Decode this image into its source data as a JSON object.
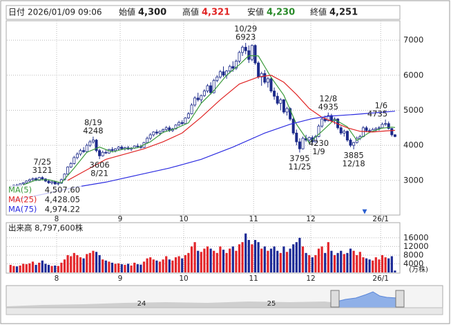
{
  "header": {
    "date_label": "日付",
    "datetime": "2026/01/09 09:06",
    "items": [
      {
        "label": "始値",
        "value": "4,300"
      },
      {
        "label": "高値",
        "value": "4,321"
      },
      {
        "label": "安値",
        "value": "4,230"
      },
      {
        "label": "終値",
        "value": "4,251"
      }
    ]
  },
  "navigator": {
    "labels": [
      "24",
      "25"
    ]
  },
  "chart_data": {
    "type": "candlestick",
    "categories": [
      null,
      null,
      null,
      null,
      null,
      null,
      null,
      null,
      null,
      null,
      null,
      null,
      null,
      null,
      null,
      "8",
      null,
      null,
      null,
      null,
      null,
      null,
      null,
      null,
      null,
      null,
      null,
      null,
      null,
      null,
      null,
      null,
      null,
      null,
      null,
      "9",
      null,
      null,
      null,
      null,
      null,
      null,
      null,
      null,
      null,
      null,
      null,
      null,
      null,
      null,
      null,
      null,
      null,
      null,
      null,
      "10",
      null,
      null,
      null,
      null,
      null,
      null,
      null,
      null,
      null,
      null,
      null,
      null,
      null,
      null,
      null,
      null,
      null,
      null,
      null,
      null,
      null,
      "11",
      null,
      null,
      null,
      null,
      null,
      null,
      null,
      null,
      null,
      null,
      null,
      null,
      null,
      null,
      null,
      null,
      null,
      "12",
      null,
      null,
      null,
      null,
      null,
      null,
      null,
      null,
      null,
      null,
      null,
      null,
      null,
      null,
      null,
      null,
      null,
      null,
      null,
      null,
      null,
      "26/1",
      null,
      null,
      null,
      null
    ],
    "ohlc": [
      [
        2780,
        2850,
        2760,
        2830
      ],
      [
        2830,
        2880,
        2800,
        2860
      ],
      [
        2860,
        2900,
        2820,
        2840
      ],
      [
        2840,
        2920,
        2830,
        2900
      ],
      [
        2900,
        2950,
        2870,
        2930
      ],
      [
        2930,
        3000,
        2900,
        2980
      ],
      [
        2980,
        3050,
        2950,
        3020
      ],
      [
        3020,
        3080,
        2990,
        3050
      ],
      [
        3050,
        3090,
        2980,
        3000
      ],
      [
        3000,
        3100,
        2990,
        3080
      ],
      [
        3080,
        3121,
        3020,
        3040
      ],
      [
        3040,
        3060,
        2950,
        2980
      ],
      [
        2980,
        3010,
        2900,
        2930
      ],
      [
        2930,
        2990,
        2880,
        2960
      ],
      [
        2960,
        2980,
        2870,
        2900
      ],
      [
        2900,
        2950,
        2850,
        2920
      ],
      [
        2920,
        3050,
        2900,
        3020
      ],
      [
        3020,
        3200,
        3000,
        3180
      ],
      [
        3180,
        3400,
        3150,
        3380
      ],
      [
        3380,
        3520,
        3350,
        3480
      ],
      [
        3480,
        3700,
        3450,
        3650
      ],
      [
        3650,
        3800,
        3600,
        3750
      ],
      [
        3750,
        3900,
        3700,
        3850
      ],
      [
        3850,
        3950,
        3780,
        3820
      ],
      [
        3820,
        4050,
        3800,
        4000
      ],
      [
        4000,
        4150,
        3950,
        4100
      ],
      [
        4100,
        4248,
        4050,
        4150
      ],
      [
        4150,
        4180,
        3800,
        3850
      ],
      [
        3850,
        3900,
        3606,
        3700
      ],
      [
        3700,
        3850,
        3680,
        3800
      ],
      [
        3800,
        3880,
        3750,
        3780
      ],
      [
        3780,
        3900,
        3760,
        3880
      ],
      [
        3880,
        3950,
        3820,
        3850
      ],
      [
        3850,
        3920,
        3800,
        3900
      ],
      [
        3900,
        3980,
        3860,
        3950
      ],
      [
        3950,
        4000,
        3880,
        3900
      ],
      [
        3900,
        3960,
        3850,
        3930
      ],
      [
        3930,
        3980,
        3870,
        3890
      ],
      [
        3890,
        3950,
        3840,
        3920
      ],
      [
        3920,
        4000,
        3900,
        3980
      ],
      [
        3980,
        4050,
        3940,
        3960
      ],
      [
        3960,
        4020,
        3900,
        3940
      ],
      [
        3940,
        4100,
        3930,
        4080
      ],
      [
        4080,
        4250,
        4060,
        4200
      ],
      [
        4200,
        4350,
        4150,
        4300
      ],
      [
        4300,
        4400,
        4250,
        4380
      ],
      [
        4380,
        4450,
        4300,
        4350
      ],
      [
        4350,
        4420,
        4280,
        4400
      ],
      [
        4400,
        4480,
        4350,
        4450
      ],
      [
        4450,
        4550,
        4400,
        4500
      ],
      [
        4500,
        4560,
        4380,
        4420
      ],
      [
        4420,
        4500,
        4380,
        4470
      ],
      [
        4470,
        4600,
        4450,
        4580
      ],
      [
        4580,
        4700,
        4550,
        4650
      ],
      [
        4650,
        4720,
        4580,
        4620
      ],
      [
        4620,
        4800,
        4600,
        4780
      ],
      [
        4780,
        4950,
        4750,
        4900
      ],
      [
        4900,
        5200,
        4880,
        5150
      ],
      [
        5150,
        5400,
        5100,
        5350
      ],
      [
        5350,
        5500,
        5250,
        5300
      ],
      [
        5300,
        5450,
        5200,
        5420
      ],
      [
        5420,
        5600,
        5380,
        5550
      ],
      [
        5550,
        5750,
        5500,
        5700
      ],
      [
        5700,
        5800,
        5450,
        5500
      ],
      [
        5500,
        5900,
        5480,
        5850
      ],
      [
        5850,
        6000,
        5800,
        5950
      ],
      [
        5950,
        6150,
        5900,
        6100
      ],
      [
        6100,
        6250,
        5950,
        6000
      ],
      [
        6000,
        6150,
        5900,
        6120
      ],
      [
        6120,
        6300,
        6050,
        6250
      ],
      [
        6250,
        6400,
        6100,
        6200
      ],
      [
        6200,
        6450,
        6150,
        6400
      ],
      [
        6400,
        6700,
        6350,
        6650
      ],
      [
        6650,
        6850,
        6550,
        6800
      ],
      [
        6800,
        6923,
        6600,
        6700
      ],
      [
        6700,
        6850,
        6350,
        6450
      ],
      [
        6450,
        6880,
        6400,
        6850
      ],
      [
        6850,
        6880,
        6300,
        6350
      ],
      [
        6350,
        6400,
        5900,
        5950
      ],
      [
        5950,
        6100,
        5700,
        6050
      ],
      [
        6050,
        6150,
        5750,
        5800
      ],
      [
        5800,
        5950,
        5650,
        5900
      ],
      [
        5900,
        5950,
        5500,
        5550
      ],
      [
        5550,
        5650,
        5300,
        5400
      ],
      [
        5400,
        5500,
        5150,
        5200
      ],
      [
        5200,
        5350,
        5000,
        5300
      ],
      [
        5300,
        5320,
        4900,
        4950
      ],
      [
        4950,
        5100,
        4850,
        5050
      ],
      [
        5050,
        5080,
        4700,
        4750
      ],
      [
        4750,
        4800,
        4300,
        4350
      ],
      [
        4350,
        4450,
        4000,
        4100
      ],
      [
        4100,
        4200,
        3795,
        3900
      ],
      [
        3900,
        4250,
        3880,
        4200
      ],
      [
        4200,
        4300,
        4100,
        4150
      ],
      [
        4150,
        4250,
        4050,
        4220
      ],
      [
        4220,
        4280,
        4050,
        4100
      ],
      [
        4100,
        4300,
        4080,
        4250
      ],
      [
        4250,
        4600,
        4230,
        4550
      ],
      [
        4550,
        4800,
        4500,
        4750
      ],
      [
        4750,
        4850,
        4650,
        4700
      ],
      [
        4700,
        4935,
        4680,
        4850
      ],
      [
        4850,
        4900,
        4650,
        4700
      ],
      [
        4700,
        4800,
        4600,
        4750
      ],
      [
        4750,
        4780,
        4450,
        4500
      ],
      [
        4500,
        4550,
        4300,
        4350
      ],
      [
        4350,
        4450,
        4250,
        4400
      ],
      [
        4400,
        4420,
        4100,
        4150
      ],
      [
        4150,
        4200,
        3950,
        4000
      ],
      [
        4000,
        4100,
        3885,
        4080
      ],
      [
        4080,
        4250,
        4050,
        4200
      ],
      [
        4200,
        4300,
        4150,
        4250
      ],
      [
        4250,
        4550,
        4230,
        4500
      ],
      [
        4500,
        4550,
        4380,
        4420
      ],
      [
        4420,
        4480,
        4350,
        4400
      ],
      [
        4400,
        4500,
        4370,
        4450
      ],
      [
        4450,
        4520,
        4400,
        4480
      ],
      [
        4480,
        4550,
        4420,
        4500
      ],
      [
        4500,
        4650,
        4480,
        4600
      ],
      [
        4600,
        4735,
        4550,
        4620
      ],
      [
        4620,
        4680,
        4450,
        4480
      ],
      [
        4480,
        4500,
        4250,
        4300
      ],
      [
        4300,
        4321,
        4230,
        4251
      ]
    ],
    "ylim": [
      2010,
      7555
    ],
    "yticks": [
      3000,
      4000,
      5000,
      6000,
      7000
    ],
    "grid": true,
    "colors": {
      "up": "#ffffff",
      "down": "#1c2a8a",
      "outline": "#1c2a8a",
      "volume_up": "#e3262b",
      "volume_down": "#1c2a96"
    },
    "series": [
      {
        "name": "MA(5)",
        "color": "#3a9a3a",
        "legend_value": {
          "value": 4507.6,
          "label": "4,507.60"
        },
        "x": [
          4,
          8,
          12,
          16,
          20,
          24,
          28,
          32,
          36,
          40,
          44,
          48,
          52,
          56,
          60,
          64,
          68,
          72,
          75,
          78,
          82,
          86,
          90,
          94,
          98,
          102,
          106,
          109,
          113,
          117,
          120,
          121
        ],
        "values": [
          2870,
          3010,
          3020,
          2930,
          3350,
          3800,
          3950,
          3810,
          3900,
          3930,
          4100,
          4370,
          4480,
          4640,
          5200,
          5560,
          6000,
          6300,
          6560,
          6550,
          5940,
          5430,
          4600,
          4070,
          4400,
          4740,
          4530,
          4140,
          4370,
          4490,
          4520,
          4507.6
        ]
      },
      {
        "name": "MA(25)",
        "color": "#e02424",
        "legend_value": {
          "value": 4428.05,
          "label": "4,428.05"
        },
        "x": [
          18,
          24,
          30,
          36,
          42,
          48,
          54,
          60,
          66,
          72,
          78,
          82,
          86,
          90,
          94,
          98,
          102,
          106,
          110,
          114,
          118,
          121
        ],
        "values": [
          3000,
          3300,
          3600,
          3750,
          3900,
          4100,
          4350,
          4800,
          5300,
          5750,
          5950,
          6000,
          5800,
          5450,
          5050,
          4800,
          4650,
          4500,
          4400,
          4380,
          4410,
          4428.05
        ]
      },
      {
        "name": "MA(75)",
        "color": "#2b2be0",
        "legend_value": {
          "value": 4974.22,
          "label": "4,974.22"
        },
        "x": [
          0,
          10,
          20,
          30,
          40,
          50,
          60,
          70,
          80,
          88,
          95,
          100,
          108,
          115,
          121
        ],
        "values": [
          2420,
          2600,
          2800,
          2950,
          3150,
          3350,
          3600,
          3950,
          4350,
          4600,
          4760,
          4830,
          4880,
          4930,
          4974.22
        ]
      }
    ],
    "annotations": [
      {
        "date": "7/25",
        "value": 3121
      },
      {
        "date": "8/19",
        "value": 4248
      },
      {
        "date": "8/21",
        "value": 3606
      },
      {
        "date": "10/29",
        "value": 6923
      },
      {
        "date": "11/25",
        "value": 3795
      },
      {
        "date": "12/8",
        "value": 4935
      },
      {
        "date": "12/18",
        "value": 3885
      },
      {
        "date": "1/6",
        "value": 4735
      },
      {
        "date": "1/9",
        "value": 4230
      }
    ],
    "volume": {
      "title": "出来高 8,797,600株",
      "unit": "(万株)",
      "ylim": [
        0,
        23000
      ],
      "yticks": [
        4000,
        8000,
        12000,
        16000
      ],
      "values": [
        3500,
        3000,
        2800,
        3200,
        4000,
        3800,
        4200,
        5000,
        3500,
        4500,
        5500,
        4000,
        3500,
        3000,
        3200,
        3000,
        4500,
        6000,
        8000,
        7500,
        9000,
        8000,
        7000,
        6500,
        8500,
        9000,
        10000,
        9500,
        8000,
        6000,
        5500,
        5000,
        4500,
        4000,
        4200,
        3800,
        3500,
        4000,
        3200,
        4500,
        3800,
        3600,
        5000,
        6500,
        7000,
        6000,
        5500,
        5000,
        6000,
        7500,
        6000,
        5500,
        7000,
        7500,
        6500,
        8000,
        9000,
        12000,
        14000,
        10000,
        9500,
        11000,
        12000,
        11000,
        10000,
        9000,
        12000,
        10500,
        9000,
        11000,
        12000,
        10000,
        13000,
        14000,
        18000,
        15000,
        13000,
        15000,
        14000,
        11000,
        12000,
        10000,
        11000,
        12000,
        10000,
        9000,
        12000,
        9500,
        11000,
        13000,
        14000,
        16000,
        12000,
        9000,
        8000,
        7000,
        8000,
        11000,
        12000,
        9000,
        14000,
        10000,
        8000,
        9000,
        10000,
        8500,
        9000,
        11000,
        10000,
        8000,
        9500,
        7000,
        6500,
        6000,
        5500,
        7000,
        6000,
        8000,
        7000,
        6500,
        7500,
        879.76
      ]
    }
  }
}
